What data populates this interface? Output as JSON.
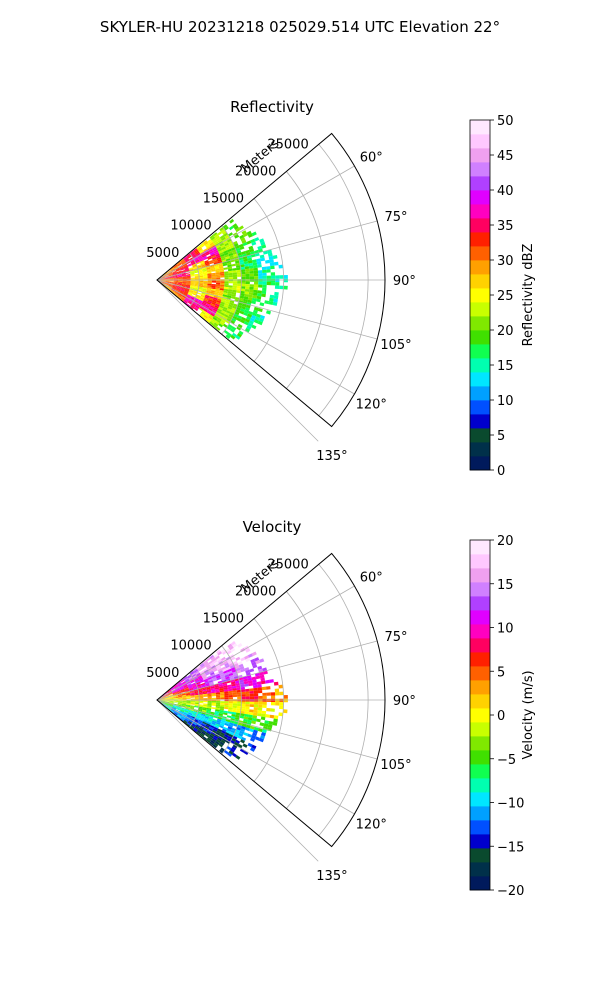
{
  "figure": {
    "title": "SKYLER-HU  20231218  025029.514 UTC Elevation 22°"
  },
  "chart_data": [
    {
      "type": "heatmap",
      "subtype": "polar-sector",
      "title": "Reflectivity",
      "radial_label": "Meters",
      "range_ticks": [
        "5000",
        "10000",
        "15000",
        "20000",
        "25000"
      ],
      "range_values": [
        5000,
        10000,
        15000,
        20000,
        25000
      ],
      "angle_ticks": [
        "60°",
        "75°",
        "90°",
        "105°",
        "120°",
        "135°"
      ],
      "angle_values": [
        60,
        75,
        90,
        105,
        120,
        135
      ],
      "theta_range": [
        50,
        130
      ],
      "range_limit": [
        0,
        27000
      ],
      "grid": true,
      "colorbar": {
        "label": "Reflectivity dBZ",
        "min": 0,
        "max": 50,
        "ticks": [
          "0",
          "5",
          "10",
          "15",
          "20",
          "25",
          "30",
          "35",
          "40",
          "45",
          "50"
        ],
        "tick_values": [
          0,
          5,
          10,
          15,
          20,
          25,
          30,
          35,
          40,
          45,
          50
        ],
        "colors": [
          "#001a5c",
          "#00304a",
          "#0a4a2e",
          "#0000cc",
          "#0050ff",
          "#00a0ff",
          "#00e6ff",
          "#00ffb0",
          "#10ff50",
          "#40e000",
          "#80e800",
          "#c8ff00",
          "#ffff00",
          "#ffd200",
          "#ffa000",
          "#ff6000",
          "#ff2000",
          "#ff0060",
          "#ff00c0",
          "#e000ff",
          "#b040ff",
          "#d080ff",
          "#f0a0f0",
          "#ffc8ff",
          "#ffe8ff"
        ]
      },
      "value_field": [
        {
          "range": 2000,
          "values": [
            29,
            31,
            32,
            33,
            31,
            30,
            31,
            32,
            30,
            28
          ]
        },
        {
          "range": 4000,
          "values": [
            31,
            33,
            34,
            35,
            32,
            31,
            33,
            34,
            33,
            30
          ]
        },
        {
          "range": 6000,
          "values": [
            35,
            37,
            27,
            24,
            26,
            28,
            24,
            26,
            37,
            36
          ]
        },
        {
          "range": 8000,
          "values": [
            26,
            37,
            33,
            27,
            30,
            31,
            27,
            33,
            36,
            25
          ]
        },
        {
          "range": 10000,
          "values": [
            22,
            22,
            21,
            20,
            22,
            23,
            21,
            22,
            22,
            21
          ]
        },
        {
          "range": 12000,
          "values": [
            19,
            20,
            18,
            17,
            20,
            21,
            19,
            18,
            18,
            17
          ]
        },
        {
          "range": 14000,
          "values": [
            15,
            18,
            16,
            14,
            15,
            17,
            18,
            15,
            16,
            15
          ]
        },
        {
          "range": 16000,
          "values": [
            13,
            15,
            14,
            13,
            14,
            15,
            14,
            13,
            14,
            13
          ]
        }
      ]
    },
    {
      "type": "heatmap",
      "subtype": "polar-sector",
      "title": "Velocity",
      "radial_label": "Meters",
      "range_ticks": [
        "5000",
        "10000",
        "15000",
        "20000",
        "25000"
      ],
      "range_values": [
        5000,
        10000,
        15000,
        20000,
        25000
      ],
      "angle_ticks": [
        "60°",
        "75°",
        "90°",
        "105°",
        "120°",
        "135°"
      ],
      "angle_values": [
        60,
        75,
        90,
        105,
        120,
        135
      ],
      "theta_range": [
        50,
        130
      ],
      "range_limit": [
        0,
        27000
      ],
      "grid": true,
      "colorbar": {
        "label": "Velocity (m/s)",
        "min": -20,
        "max": 20,
        "ticks": [
          "−20",
          "−15",
          "−10",
          "−5",
          "0",
          "5",
          "10",
          "15",
          "20"
        ],
        "tick_values": [
          -20,
          -15,
          -10,
          -5,
          0,
          5,
          10,
          15,
          20
        ],
        "colors": [
          "#001a5c",
          "#00304a",
          "#0a4a2e",
          "#0000cc",
          "#0050ff",
          "#00a0ff",
          "#00e6ff",
          "#00ffb0",
          "#10ff50",
          "#40e000",
          "#80e800",
          "#c8ff00",
          "#ffff00",
          "#ffd200",
          "#ffa000",
          "#ff6000",
          "#ff2000",
          "#ff0060",
          "#ff00c0",
          "#e000ff",
          "#b040ff",
          "#d080ff",
          "#f0a0f0",
          "#ffc8ff",
          "#ffe8ff"
        ]
      },
      "value_field": [
        {
          "range": 2000,
          "values": [
            8,
            6,
            3,
            1,
            0,
            -2,
            -3,
            -5,
            -8,
            -9
          ]
        },
        {
          "range": 4000,
          "values": [
            11,
            10,
            7,
            4,
            1,
            -2,
            -4,
            -8,
            -11,
            -12
          ]
        },
        {
          "range": 6000,
          "values": [
            14,
            12,
            10,
            7,
            3,
            -1,
            -4,
            -9,
            -13,
            -15
          ]
        },
        {
          "range": 8000,
          "values": [
            16,
            15,
            12,
            9,
            4,
            -2,
            -6,
            -10,
            -15,
            -17
          ]
        },
        {
          "range": 10000,
          "values": [
            17,
            16,
            13,
            10,
            5,
            0,
            -6,
            -11,
            -16,
            -17
          ]
        },
        {
          "range": 12000,
          "values": [
            18,
            17,
            14,
            11,
            6,
            1,
            -5,
            -11,
            -15,
            -14
          ]
        },
        {
          "range": 14000,
          "values": [
            17,
            16,
            14,
            10,
            5,
            1,
            -6,
            -12,
            -13,
            -12
          ]
        },
        {
          "range": 16000,
          "values": [
            15,
            14,
            12,
            9,
            3,
            0,
            -6,
            -11,
            -12,
            -11
          ]
        }
      ]
    }
  ]
}
